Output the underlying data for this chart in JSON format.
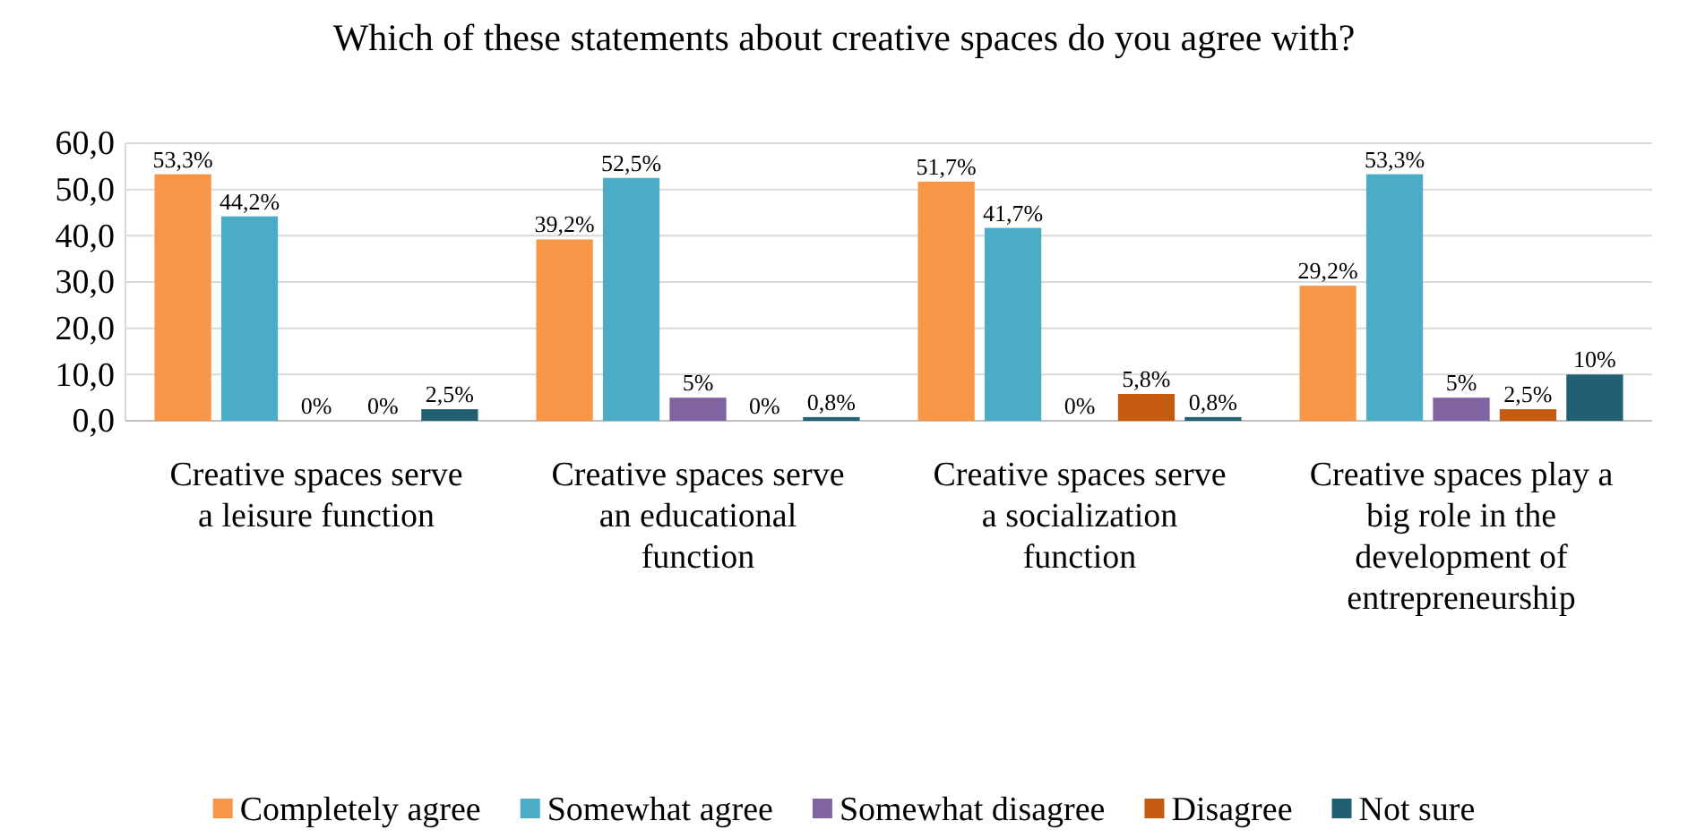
{
  "chart_data": {
    "type": "bar",
    "title": "Which of these statements about creative spaces do you agree with?",
    "categories": [
      "Creative spaces serve a leisure function",
      "Creative spaces serve an educational function",
      "Creative spaces serve a socialization function",
      "Creative spaces play a big role in the development of entrepreneurship"
    ],
    "series": [
      {
        "name": "Completely agree",
        "color": "#f79646",
        "values": [
          53.3,
          39.2,
          51.7,
          29.2
        ],
        "value_labels": [
          "53,3%",
          "39,2%",
          "51,7%",
          "29,2%"
        ]
      },
      {
        "name": "Somewhat agree",
        "color": "#4bacc6",
        "values": [
          44.2,
          52.5,
          41.7,
          53.3
        ],
        "value_labels": [
          "44,2%",
          "52,5%",
          "41,7%",
          "53,3%"
        ]
      },
      {
        "name": "Somewhat disagree",
        "color": "#8064a2",
        "values": [
          0,
          5,
          0,
          5
        ],
        "value_labels": [
          "0%",
          "5%",
          "0%",
          "5%"
        ]
      },
      {
        "name": "Disagree",
        "color": "#c55a11",
        "values": [
          0,
          0,
          5.8,
          2.5
        ],
        "value_labels": [
          "0%",
          "0%",
          "5,8%",
          "2,5%"
        ]
      },
      {
        "name": "Not sure",
        "color": "#215f73",
        "values": [
          2.5,
          0.8,
          0.8,
          10
        ],
        "value_labels": [
          "2,5%",
          "0,8%",
          "0,8%",
          "10%"
        ]
      }
    ],
    "ylim": [
      0,
      60
    ],
    "yticks": [
      {
        "value": 0,
        "label": "0,0"
      },
      {
        "value": 10,
        "label": "10,0"
      },
      {
        "value": 20,
        "label": "20,0"
      },
      {
        "value": 30,
        "label": "30,0"
      },
      {
        "value": 40,
        "label": "40,0"
      },
      {
        "value": 50,
        "label": "50,0"
      },
      {
        "value": 60,
        "label": "60,0"
      }
    ],
    "grid": "y",
    "legend": "bottom"
  }
}
